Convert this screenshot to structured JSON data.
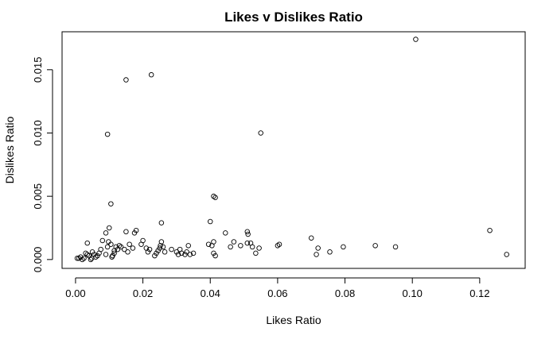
{
  "chart_data": {
    "type": "scatter",
    "title": "Likes v Dislikes Ratio",
    "xlabel": "Likes Ratio",
    "ylabel": "Dislikes Ratio",
    "xlim": [
      -0.004,
      0.1335
    ],
    "ylim": [
      -0.0007,
      0.018
    ],
    "xticks": [
      0.0,
      0.02,
      0.04,
      0.06,
      0.08,
      0.1,
      0.12
    ],
    "xtick_labels": [
      "0.00",
      "0.02",
      "0.04",
      "0.06",
      "0.08",
      "0.10",
      "0.12"
    ],
    "yticks": [
      0.0,
      0.005,
      0.01,
      0.015
    ],
    "ytick_labels": [
      "0.000",
      "0.005",
      "0.010",
      "0.015"
    ],
    "grid": false,
    "legend": "none",
    "marker": "open-circle",
    "points": [
      [
        0.101,
        0.0174
      ],
      [
        0.0225,
        0.0146
      ],
      [
        0.015,
        0.0142
      ],
      [
        0.0095,
        0.0099
      ],
      [
        0.055,
        0.01
      ],
      [
        0.041,
        0.005
      ],
      [
        0.0415,
        0.0049
      ],
      [
        0.0105,
        0.0044
      ],
      [
        0.0255,
        0.0029
      ],
      [
        0.04,
        0.003
      ],
      [
        0.123,
        0.0023
      ],
      [
        0.128,
        0.0004
      ],
      [
        0.07,
        0.0017
      ],
      [
        0.072,
        0.0009
      ],
      [
        0.0715,
        0.0004
      ],
      [
        0.0755,
        0.0006
      ],
      [
        0.0795,
        0.001
      ],
      [
        0.089,
        0.0011
      ],
      [
        0.095,
        0.001
      ],
      [
        0.0605,
        0.0012
      ],
      [
        0.06,
        0.0011
      ],
      [
        0.051,
        0.0022
      ],
      [
        0.0512,
        0.002
      ],
      [
        0.051,
        0.0013
      ],
      [
        0.052,
        0.0013
      ],
      [
        0.0525,
        0.001
      ],
      [
        0.0535,
        0.0005
      ],
      [
        0.0545,
        0.0009
      ],
      [
        0.049,
        0.0011
      ],
      [
        0.047,
        0.0014
      ],
      [
        0.046,
        0.001
      ],
      [
        0.0445,
        0.0021
      ],
      [
        0.041,
        0.0014
      ],
      [
        0.0405,
        0.0011
      ],
      [
        0.0395,
        0.0012
      ],
      [
        0.041,
        0.0005
      ],
      [
        0.0415,
        0.0003
      ],
      [
        0.0335,
        0.0011
      ],
      [
        0.033,
        0.0006
      ],
      [
        0.0325,
        0.0004
      ],
      [
        0.034,
        0.0004
      ],
      [
        0.035,
        0.0005
      ],
      [
        0.031,
        0.0008
      ],
      [
        0.03,
        0.0006
      ],
      [
        0.0305,
        0.0004
      ],
      [
        0.0315,
        0.0005
      ],
      [
        0.0285,
        0.0008
      ],
      [
        0.026,
        0.001
      ],
      [
        0.0255,
        0.0014
      ],
      [
        0.0252,
        0.0011
      ],
      [
        0.025,
        0.0009
      ],
      [
        0.0245,
        0.0007
      ],
      [
        0.024,
        0.0005
      ],
      [
        0.0235,
        0.0003
      ],
      [
        0.0265,
        0.0006
      ],
      [
        0.022,
        0.0008
      ],
      [
        0.021,
        0.0009
      ],
      [
        0.0215,
        0.0006
      ],
      [
        0.02,
        0.0015
      ],
      [
        0.0195,
        0.0012
      ],
      [
        0.018,
        0.0023
      ],
      [
        0.0175,
        0.0021
      ],
      [
        0.017,
        0.0009
      ],
      [
        0.016,
        0.0012
      ],
      [
        0.0155,
        0.0006
      ],
      [
        0.015,
        0.0022
      ],
      [
        0.0145,
        0.0008
      ],
      [
        0.0135,
        0.001
      ],
      [
        0.013,
        0.0011
      ],
      [
        0.0125,
        0.0008
      ],
      [
        0.012,
        0.001
      ],
      [
        0.0115,
        0.0007
      ],
      [
        0.0115,
        0.0005
      ],
      [
        0.011,
        0.0003
      ],
      [
        0.0108,
        0.0002
      ],
      [
        0.01,
        0.0025
      ],
      [
        0.0105,
        0.0012
      ],
      [
        0.0098,
        0.0014
      ],
      [
        0.0095,
        0.001
      ],
      [
        0.009,
        0.0021
      ],
      [
        0.009,
        0.0004
      ],
      [
        0.008,
        0.0015
      ],
      [
        0.0075,
        0.0008
      ],
      [
        0.007,
        0.0005
      ],
      [
        0.0065,
        0.0003
      ],
      [
        0.006,
        0.0002
      ],
      [
        0.0055,
        0.0004
      ],
      [
        0.005,
        0.0006
      ],
      [
        0.0048,
        0.0001
      ],
      [
        0.0045,
        0.0
      ],
      [
        0.004,
        0.0003
      ],
      [
        0.0035,
        0.0013
      ],
      [
        0.0035,
        0.0004
      ],
      [
        0.003,
        0.0005
      ],
      [
        0.0025,
        0.0001
      ],
      [
        0.002,
        0.0
      ],
      [
        0.0015,
        0.0002
      ],
      [
        0.001,
        0.0001
      ],
      [
        0.0005,
        0.0001
      ]
    ]
  }
}
